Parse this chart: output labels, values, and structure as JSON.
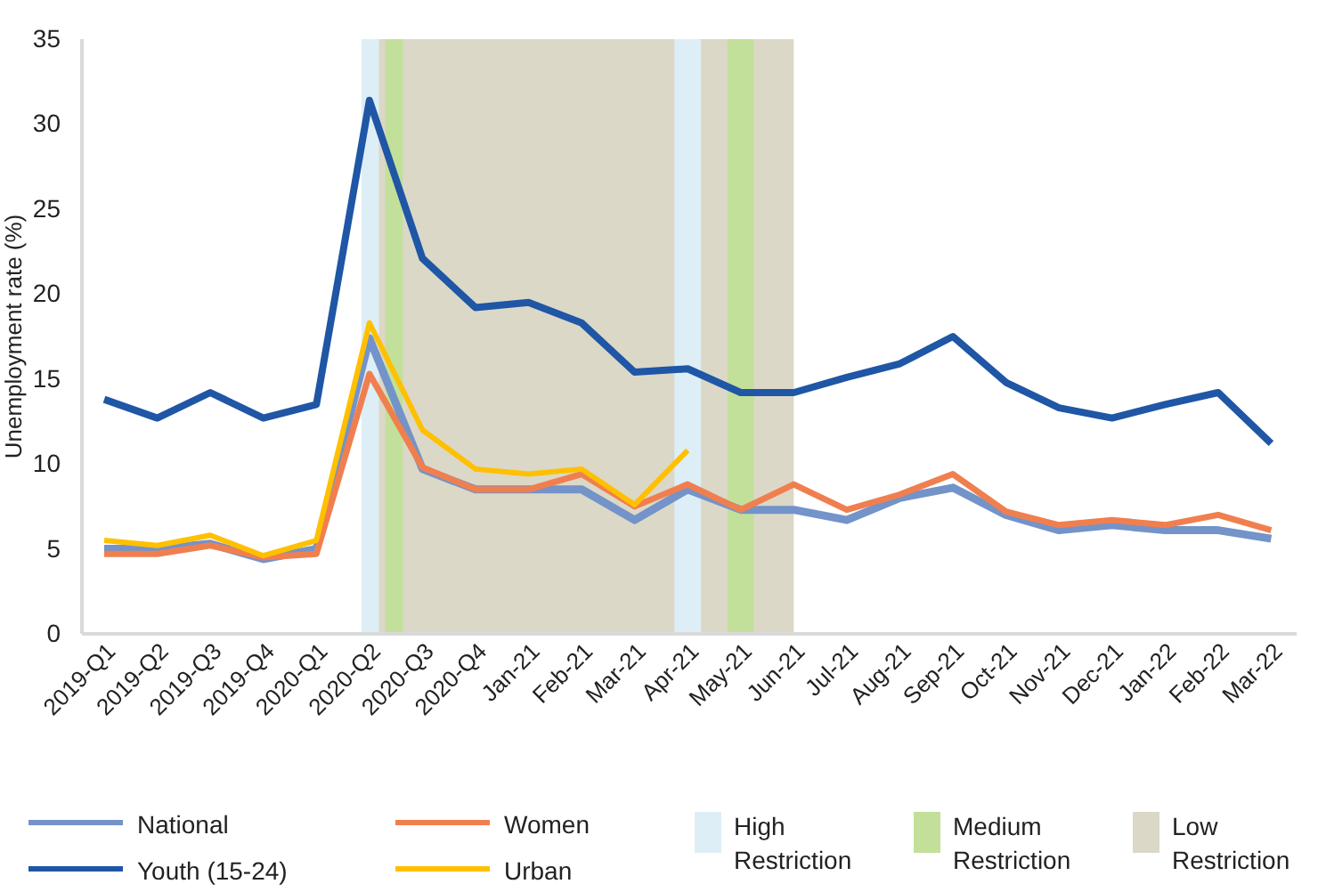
{
  "chart_data": {
    "type": "line",
    "ylabel": "Unemployment rate (%)",
    "categories": [
      "2019-Q1",
      "2019-Q2",
      "2019-Q3",
      "2019-Q4",
      "2020-Q1",
      "2020-Q2",
      "2020-Q3",
      "2020-Q4",
      "Jan-21",
      "Feb-21",
      "Mar-21",
      "Apr-21",
      "May-21",
      "Jun-21",
      "Jul-21",
      "Aug-21",
      "Sep-21",
      "Oct-21",
      "Nov-21",
      "Dec-21",
      "Jan-22",
      "Feb-22",
      "Mar-22"
    ],
    "series": [
      {
        "name": "National",
        "color": "#7393c9",
        "values": [
          5.0,
          5.0,
          5.3,
          4.4,
          5.0,
          17.4,
          9.7,
          8.5,
          8.5,
          8.5,
          6.7,
          8.5,
          7.3,
          7.3,
          6.7,
          8.0,
          8.6,
          7.0,
          6.1,
          6.4,
          6.1,
          6.1,
          5.6
        ]
      },
      {
        "name": "Youth (15-24)",
        "color": "#1f56a5",
        "values": [
          13.8,
          12.7,
          14.2,
          12.7,
          13.5,
          31.4,
          22.1,
          19.2,
          19.5,
          18.3,
          15.4,
          15.6,
          14.2,
          14.2,
          15.1,
          15.9,
          17.5,
          14.8,
          13.3,
          12.7,
          13.5,
          14.2,
          11.2
        ]
      },
      {
        "name": "Women",
        "color": "#f07f50",
        "values": [
          4.7,
          4.7,
          5.2,
          4.5,
          4.7,
          15.3,
          9.8,
          8.5,
          8.5,
          9.4,
          7.5,
          8.8,
          7.3,
          8.8,
          7.3,
          8.2,
          9.4,
          7.2,
          6.4,
          6.7,
          6.4,
          7.0,
          6.1
        ]
      },
      {
        "name": "Urban",
        "color": "#ffc000",
        "values": [
          5.5,
          5.2,
          5.8,
          4.6,
          5.5,
          18.3,
          12.0,
          9.7,
          9.4,
          9.7,
          7.6,
          10.8,
          null,
          null,
          null,
          null,
          null,
          null,
          null,
          null,
          null,
          null,
          null
        ]
      }
    ],
    "bands": [
      {
        "axis": "x",
        "from": "2020-Q2",
        "to": "Jun-21",
        "label": "Low Restriction",
        "color": "#dbd8c8"
      },
      {
        "axis": "x",
        "from": "2020-Q2",
        "to": "2020-Q2",
        "label": "High Restriction",
        "color": "#ddeef6"
      },
      {
        "axis": "x",
        "from": "2020-Q2",
        "to": "2020-Q2",
        "color": "#c3e09a"
      },
      {
        "axis": "x",
        "from": "Apr-21",
        "to": "Apr-21",
        "color": "#ddeef6"
      },
      {
        "axis": "x",
        "from": "May-21",
        "to": "May-21",
        "label": "Medium Restriction",
        "color": "#c3e09a"
      }
    ],
    "ylim": [
      0,
      35
    ],
    "yticks": [
      0,
      5,
      10,
      15,
      20,
      25,
      30,
      35
    ],
    "grid": false,
    "legend": "bottom",
    "marker": "none",
    "line_style": "solid"
  }
}
